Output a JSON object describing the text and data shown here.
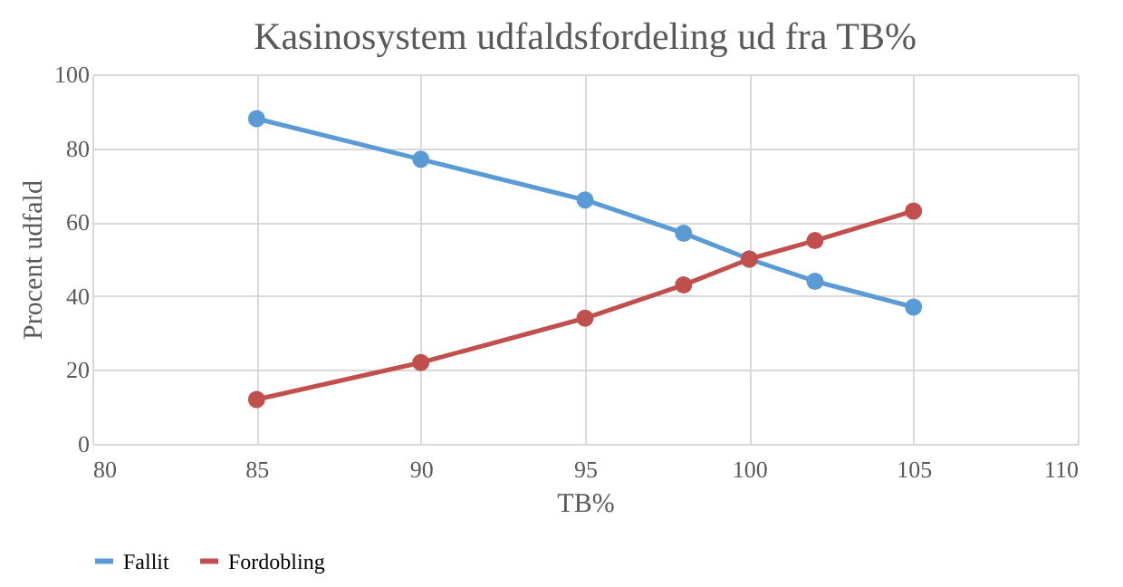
{
  "chart_data": {
    "type": "line",
    "title": "Kasinosystem udfaldsfordeling ud fra TB%",
    "xlabel": "TB%",
    "ylabel": "Procent udfald",
    "x": [
      85,
      90,
      95,
      98,
      100,
      102,
      105
    ],
    "series": [
      {
        "name": "Fallit",
        "color": "#5b9bd5",
        "values": [
          88,
          77,
          66,
          57,
          50,
          44,
          37
        ]
      },
      {
        "name": "Fordobling",
        "color": "#c0504d",
        "values": [
          12,
          22,
          34,
          43,
          50,
          55,
          63
        ]
      }
    ],
    "xlim": [
      80,
      110
    ],
    "xticks": [
      80,
      85,
      90,
      95,
      100,
      105,
      110
    ],
    "ylim": [
      0,
      100
    ],
    "yticks": [
      0,
      20,
      40,
      60,
      80,
      100
    ],
    "grid": true,
    "legend": "bottom",
    "marker": "circle",
    "line_style": "solid"
  }
}
